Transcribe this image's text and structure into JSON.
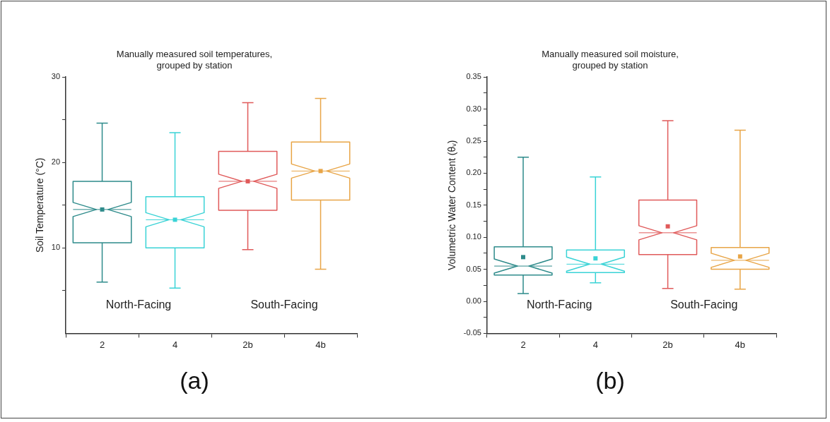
{
  "chart_data": [
    {
      "type": "box",
      "title": "Manually measured soil temperatures,\ngrouped by station",
      "ylabel": "Soil Temperature (°C)",
      "categories": [
        "2",
        "4",
        "2b",
        "4b"
      ],
      "colors": [
        "#2e8b8b",
        "#3ad3d6",
        "#e05a5a",
        "#e8a547"
      ],
      "boxes": [
        {
          "low": 6.0,
          "q1": 10.6,
          "median": 14.5,
          "q3": 17.8,
          "high": 24.6,
          "mean": 14.5
        },
        {
          "low": 5.3,
          "q1": 10.0,
          "median": 13.3,
          "q3": 16.0,
          "high": 23.5,
          "mean": 13.3
        },
        {
          "low": 9.8,
          "q1": 14.4,
          "median": 17.8,
          "q3": 21.3,
          "high": 27.0,
          "mean": 17.8
        },
        {
          "low": 7.5,
          "q1": 15.6,
          "median": 19.0,
          "q3": 22.4,
          "high": 27.5,
          "mean": 19.0
        }
      ],
      "ylim": [
        0,
        30
      ],
      "yticks": [
        {
          "value": 5,
          "label": null
        },
        10,
        {
          "value": 15,
          "label": null
        },
        20,
        {
          "value": 25,
          "label": null
        },
        30
      ],
      "grid": false,
      "annotations": [
        "North-Facing",
        "South-Facing",
        "(a)"
      ]
    },
    {
      "type": "box",
      "title": "Manually measured soil moisture,\ngrouped by station",
      "ylabel": "Volumetric Water Content (θᵥ)",
      "categories": [
        "2",
        "4",
        "2b",
        "4b"
      ],
      "colors": [
        "#2e8b8b",
        "#3ad3d6",
        "#e05a5a",
        "#e8a547"
      ],
      "boxes": [
        {
          "low": 0.012,
          "q1": 0.041,
          "median": 0.055,
          "q3": 0.085,
          "high": 0.225,
          "mean": 0.069
        },
        {
          "low": 0.029,
          "q1": 0.045,
          "median": 0.058,
          "q3": 0.08,
          "high": 0.194,
          "mean": 0.067
        },
        {
          "low": 0.02,
          "q1": 0.073,
          "median": 0.107,
          "q3": 0.158,
          "high": 0.282,
          "mean": 0.117
        },
        {
          "low": 0.019,
          "q1": 0.05,
          "median": 0.064,
          "q3": 0.084,
          "high": 0.267,
          "mean": 0.07
        }
      ],
      "ylim": [
        -0.05,
        0.35
      ],
      "yticks": [
        {
          "value": -0.05,
          "label": "-0.05"
        },
        {
          "value": -0.025,
          "label": null
        },
        {
          "value": 0,
          "label": "0.00"
        },
        {
          "value": 0.025,
          "label": null
        },
        {
          "value": 0.05,
          "label": "0.05"
        },
        {
          "value": 0.075,
          "label": null
        },
        {
          "value": 0.1,
          "label": "0.10"
        },
        {
          "value": 0.125,
          "label": null
        },
        {
          "value": 0.15,
          "label": "0.15"
        },
        {
          "value": 0.175,
          "label": null
        },
        {
          "value": 0.2,
          "label": "0.20"
        },
        {
          "value": 0.225,
          "label": null
        },
        {
          "value": 0.25,
          "label": "0.25"
        },
        {
          "value": 0.275,
          "label": null
        },
        {
          "value": 0.3,
          "label": "0.30"
        },
        {
          "value": 0.325,
          "label": null
        },
        {
          "value": 0.35,
          "label": "0.35"
        }
      ],
      "grid": false,
      "annotations": [
        "North-Facing",
        "South-Facing",
        "(b)"
      ]
    }
  ]
}
